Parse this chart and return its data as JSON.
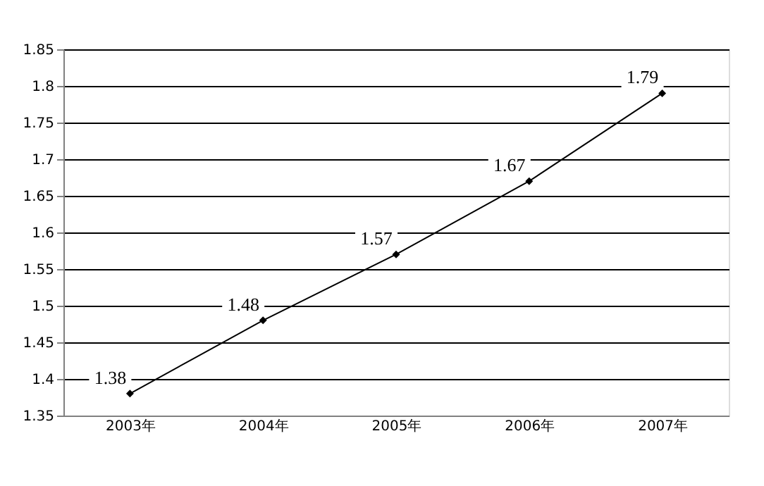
{
  "chart_data": {
    "type": "line",
    "categories": [
      "2003年",
      "2004年",
      "2005年",
      "2006年",
      "2007年"
    ],
    "series": [
      {
        "color": "#000000",
        "values": [
          1.38,
          1.48,
          1.57,
          1.67,
          1.79
        ]
      }
    ],
    "ylim": [
      1.35,
      1.85
    ],
    "yticks": [
      1.35,
      1.4,
      1.45,
      1.5,
      1.55,
      1.6,
      1.65,
      1.7,
      1.75,
      1.8,
      1.85
    ],
    "grid": "y",
    "marker": "diamond",
    "line_style": "solid",
    "data_labels": true
  }
}
